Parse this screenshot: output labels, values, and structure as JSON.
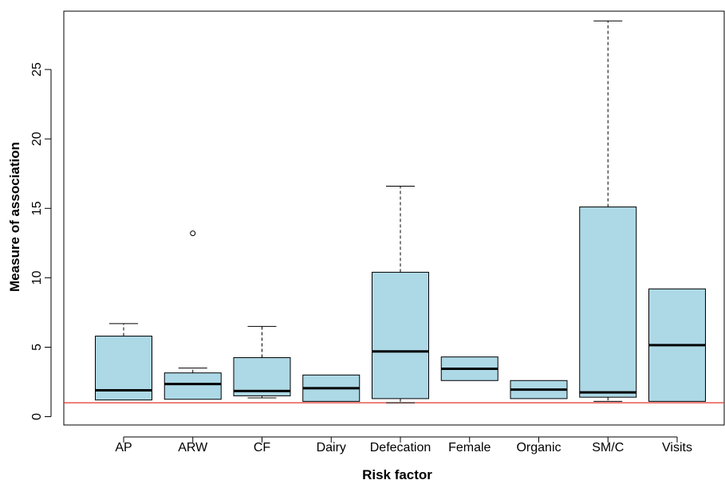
{
  "chart_data": {
    "type": "boxplot",
    "title": "",
    "xlabel": "Risk factor",
    "ylabel": "Measure of association",
    "ylim": [
      -0.6,
      29.2
    ],
    "yticks": [
      0,
      5,
      10,
      15,
      20,
      25
    ],
    "ytick_labels": [
      "0",
      "5",
      "10",
      "15",
      "20",
      "25"
    ],
    "categories": [
      "AP",
      "ARW",
      "CF",
      "Dairy",
      "Defecation",
      "Female",
      "Organic",
      "SM/C",
      "Visits"
    ],
    "boxes": [
      {
        "category": "AP",
        "whisker_low": 1.2,
        "q1": 1.2,
        "median": 1.9,
        "q3": 5.8,
        "whisker_high": 6.7,
        "outliers": []
      },
      {
        "category": "ARW",
        "whisker_low": 1.25,
        "q1": 1.25,
        "median": 2.35,
        "q3": 3.15,
        "whisker_high": 3.5,
        "outliers": [
          13.2
        ]
      },
      {
        "category": "CF",
        "whisker_low": 1.35,
        "q1": 1.5,
        "median": 1.85,
        "q3": 4.25,
        "whisker_high": 6.5,
        "outliers": []
      },
      {
        "category": "Dairy",
        "whisker_low": 1.1,
        "q1": 1.1,
        "median": 2.05,
        "q3": 3.0,
        "whisker_high": 3.0,
        "outliers": []
      },
      {
        "category": "Defecation",
        "whisker_low": 1.0,
        "q1": 1.3,
        "median": 4.7,
        "q3": 10.4,
        "whisker_high": 16.6,
        "outliers": []
      },
      {
        "category": "Female",
        "whisker_low": 2.6,
        "q1": 2.6,
        "median": 3.45,
        "q3": 4.3,
        "whisker_high": 4.3,
        "outliers": []
      },
      {
        "category": "Organic",
        "whisker_low": 1.3,
        "q1": 1.3,
        "median": 1.95,
        "q3": 2.6,
        "whisker_high": 2.6,
        "outliers": []
      },
      {
        "category": "SM/C",
        "whisker_low": 1.1,
        "q1": 1.4,
        "median": 1.75,
        "q3": 15.1,
        "whisker_high": 28.5,
        "outliers": []
      },
      {
        "category": "Visits",
        "whisker_low": 1.1,
        "q1": 1.1,
        "median": 5.15,
        "q3": 9.2,
        "whisker_high": 9.2,
        "outliers": []
      }
    ],
    "reference_line": {
      "y": 1.0,
      "color": "#e0352b"
    },
    "box_fill": "#add8e6",
    "grid": false,
    "legend": "none"
  }
}
